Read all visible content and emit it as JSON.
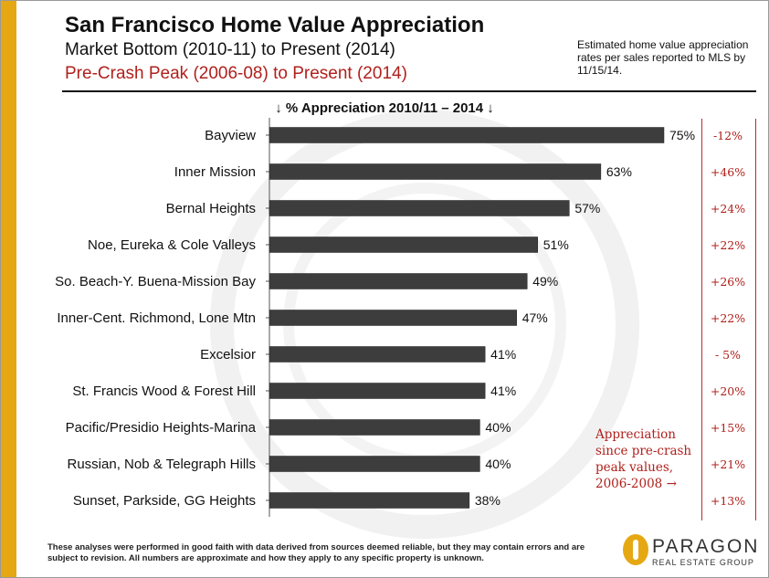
{
  "header": {
    "title": "San Francisco Home Value Appreciation",
    "subtitle1": "Market Bottom (2010-11) to Present (2014)",
    "subtitle2": "Pre-Crash Peak (2006-08) to Present (2014)",
    "note": "Estimated home value appreciation rates per sales reported to MLS by 11/15/14."
  },
  "colors": {
    "gold": "#e6a812",
    "bar": "#3d3d3d",
    "red": "#b0201c"
  },
  "side_note": "Appreciation since pre-crash peak values, 2006-2008 →",
  "footer": "These analyses were performed in good faith with data derived from sources deemed reliable, but they may contain errors and are subject to revision. All numbers are approximate and how they apply to any specific property is unknown.",
  "logo": {
    "name": "PARAGON",
    "tagline": "REAL ESTATE GROUP",
    "icon": "paragon-logo-icon"
  },
  "chart_data": {
    "type": "bar",
    "orientation": "horizontal",
    "title": "↓ % Appreciation 2010/11 – 2014 ↓",
    "categories": [
      "Bayview",
      "Inner Mission",
      "Bernal Heights",
      "Noe, Eureka & Cole Valleys",
      "So. Beach-Y. Buena-Mission Bay",
      "Inner-Cent. Richmond, Lone Mtn",
      "Excelsior",
      "St. Francis Wood & Forest Hill",
      "Pacific/Presidio Heights-Marina",
      "Russian, Nob & Telegraph Hills",
      "Sunset, Parkside, GG Heights"
    ],
    "values": [
      75,
      63,
      57,
      51,
      49,
      47,
      41,
      41,
      40,
      40,
      38
    ],
    "value_labels": [
      "75%",
      "63%",
      "57%",
      "51%",
      "49%",
      "47%",
      "41%",
      "41%",
      "40%",
      "40%",
      "38%"
    ],
    "peak_appreciation_labels": [
      "-12%",
      "+46%",
      "+24%",
      "+22%",
      "+26%",
      "+22%",
      "- 5%",
      "+20%",
      "+15%",
      "+21%",
      "+13%"
    ],
    "xlim": [
      0,
      75
    ],
    "grid": false,
    "legend": "none"
  }
}
